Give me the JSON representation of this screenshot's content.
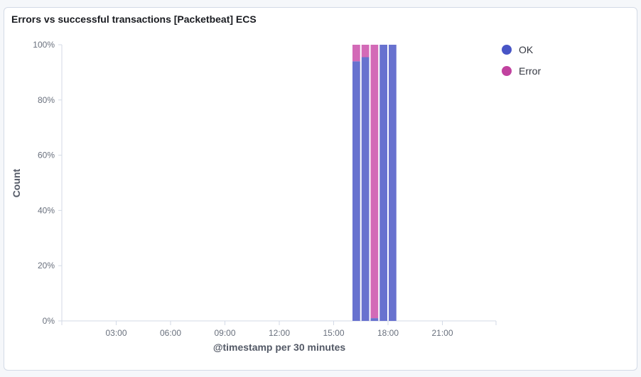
{
  "panel": {
    "title": "Errors vs successful transactions [Packetbeat] ECS"
  },
  "chart_data": {
    "type": "bar",
    "stacked": "percentage",
    "xlabel": "@timestamp per 30 minutes",
    "ylabel": "Count",
    "x_ticks": [
      "03:00",
      "06:00",
      "09:00",
      "12:00",
      "15:00",
      "18:00",
      "21:00"
    ],
    "y_ticks": [
      "0%",
      "20%",
      "40%",
      "60%",
      "80%",
      "100%"
    ],
    "ylim": [
      0,
      100
    ],
    "categories": [
      "16:00",
      "16:30",
      "17:00",
      "17:30",
      "18:00"
    ],
    "series": [
      {
        "name": "OK",
        "color": "#6872cf",
        "values": [
          94,
          95.5,
          1,
          100,
          100
        ]
      },
      {
        "name": "Error",
        "color": "#d36ab7",
        "values": [
          6,
          4.5,
          99,
          0,
          0
        ]
      }
    ],
    "grid": false,
    "legend_position": "right"
  },
  "legend": {
    "items": [
      {
        "label": "OK",
        "color": "#4855c6"
      },
      {
        "label": "Error",
        "color": "#c1429f"
      }
    ]
  }
}
